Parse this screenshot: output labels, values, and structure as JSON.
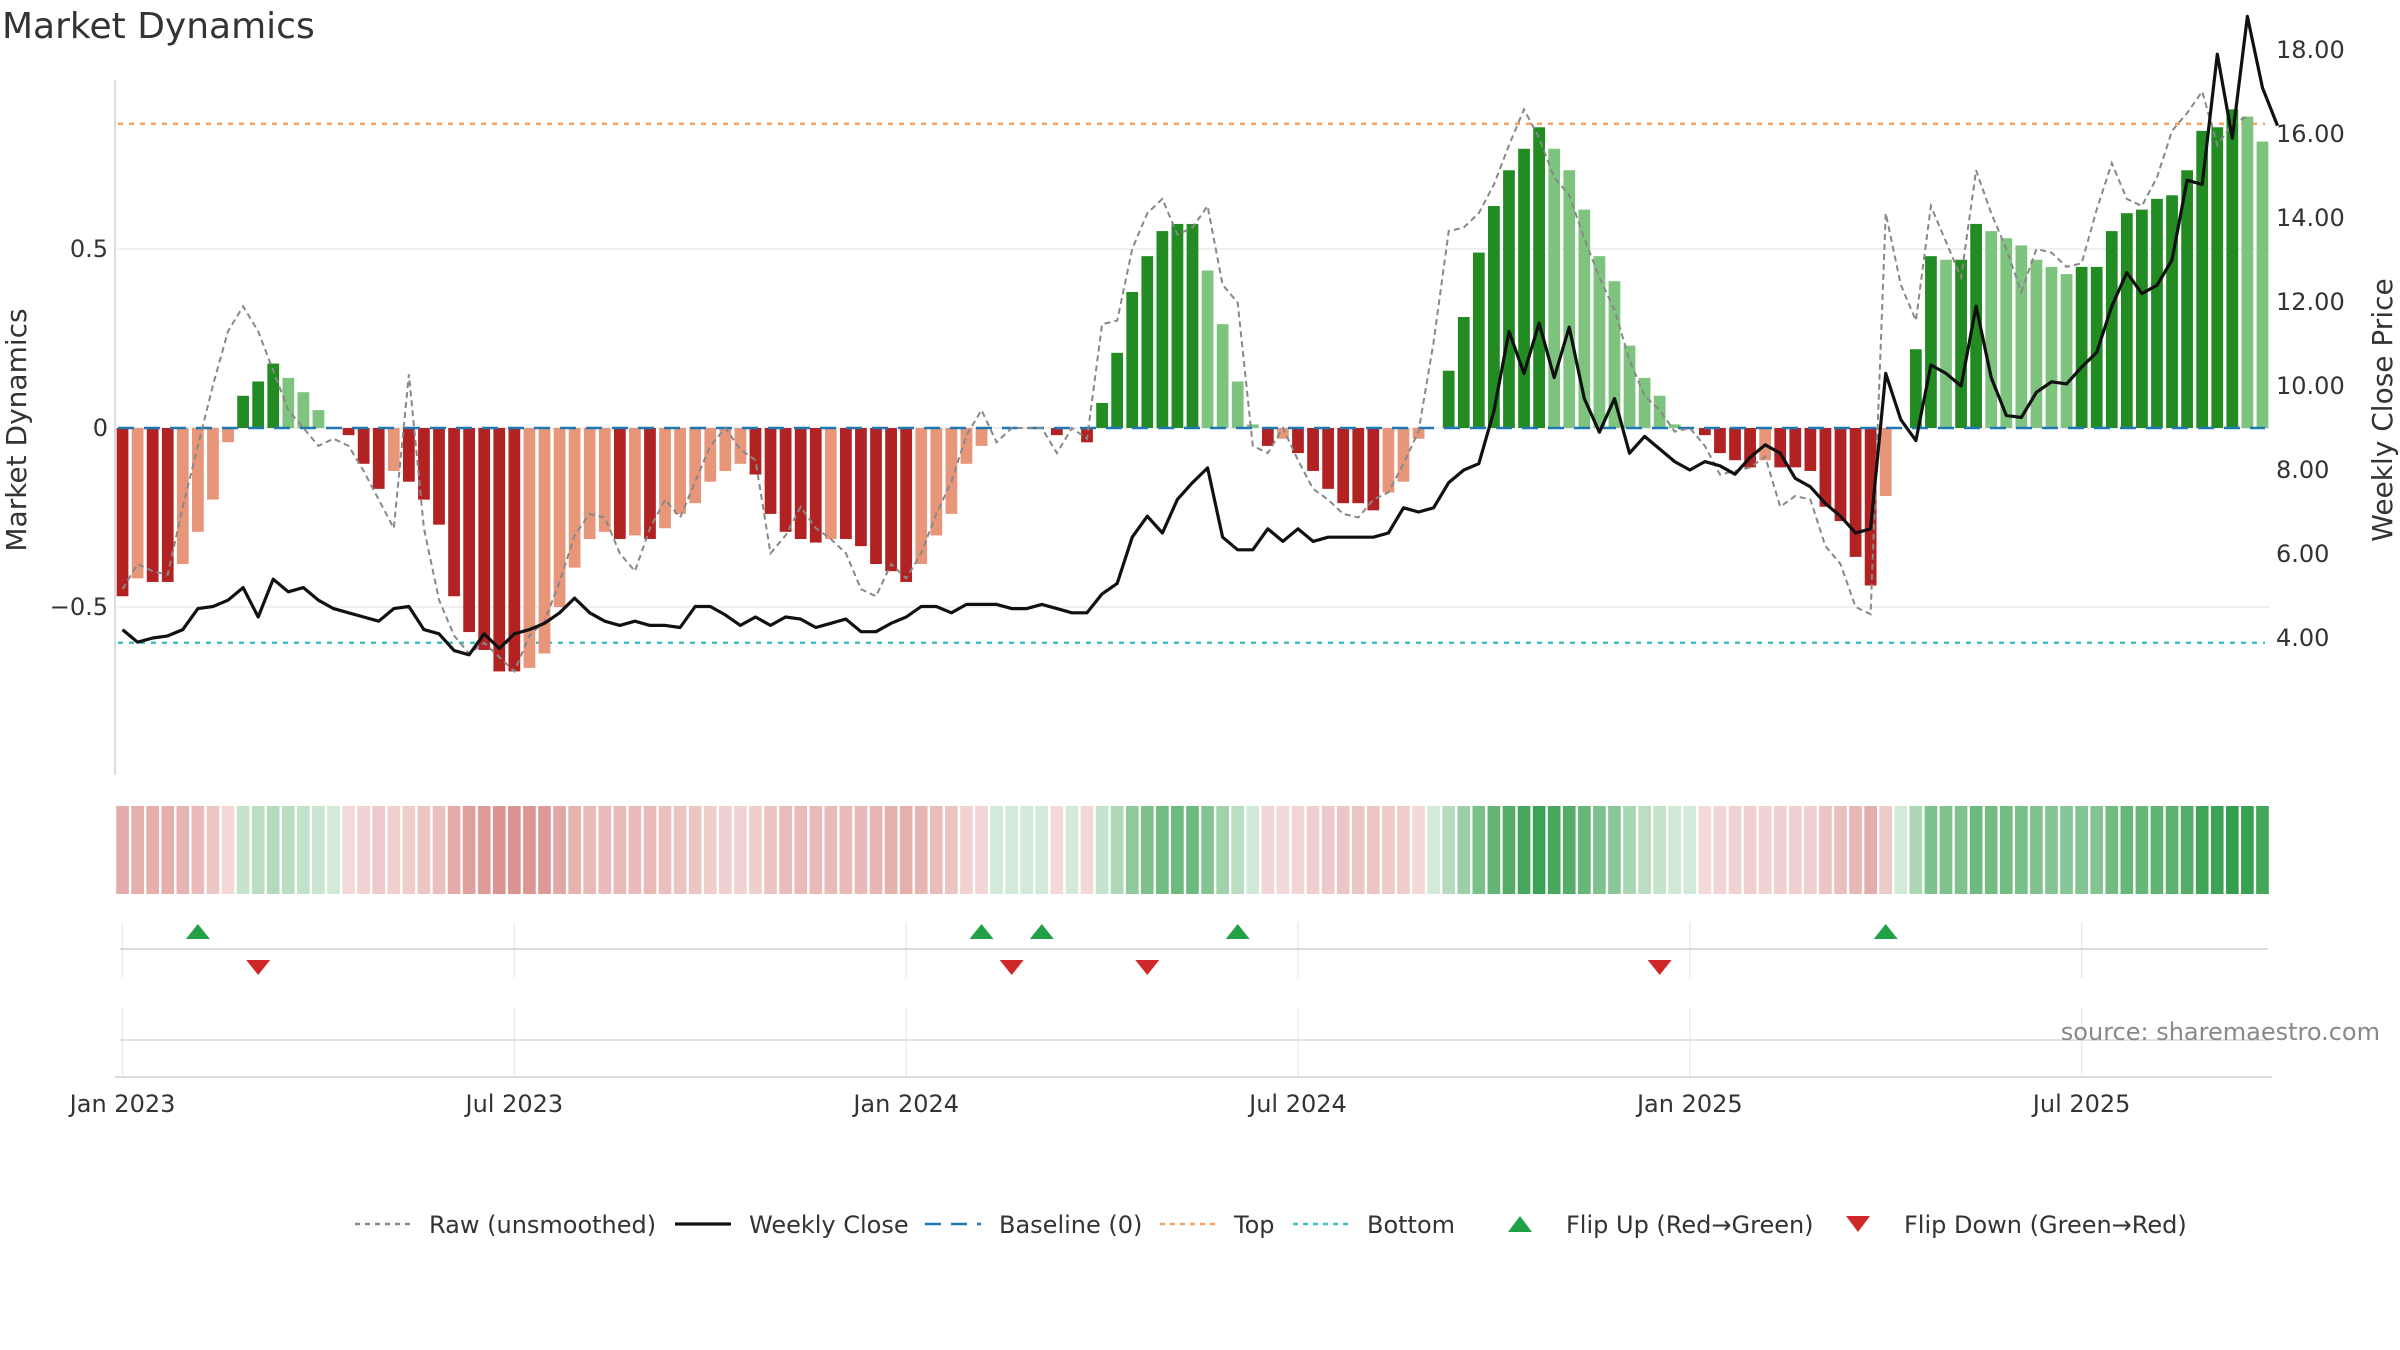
{
  "chart_data": {
    "type": "bar",
    "title": "Market Dynamics",
    "ylabel_left": "Market Dynamics",
    "ylabel_right": "Weekly Close Price",
    "ylim_left": [
      -0.97,
      0.97
    ],
    "ylim_right": [
      3,
      19.5
    ],
    "yticks_left": [
      {
        "v": 0.5,
        "label": "0.5"
      },
      {
        "v": 0,
        "label": "0"
      },
      {
        "v": -0.5,
        "label": "−0.5"
      }
    ],
    "yticks_right": [
      {
        "v": 18,
        "label": "18.00"
      },
      {
        "v": 16,
        "label": "16.00"
      },
      {
        "v": 14,
        "label": "14.00"
      },
      {
        "v": 12,
        "label": "12.00"
      },
      {
        "v": 10,
        "label": "10.00"
      },
      {
        "v": 8,
        "label": "8.00"
      },
      {
        "v": 6,
        "label": "6.00"
      },
      {
        "v": 4,
        "label": "4.00"
      }
    ],
    "xticks": [
      {
        "week": 0,
        "label": "Jan 2023"
      },
      {
        "week": 26,
        "label": "Jul 2023"
      },
      {
        "week": 52,
        "label": "Jan 2024"
      },
      {
        "week": 78,
        "label": "Jul 2024"
      },
      {
        "week": 104,
        "label": "Jan 2025"
      },
      {
        "week": 130,
        "label": "Jul 2025"
      }
    ],
    "x_start": "2022-12-26",
    "x_step_days": 7,
    "top": 0.85,
    "bottom": -0.6,
    "baseline": 0,
    "dynamics": [
      -0.47,
      -0.42,
      -0.43,
      -0.43,
      -0.38,
      -0.29,
      -0.2,
      -0.04,
      0.09,
      0.13,
      0.18,
      0.14,
      0.1,
      0.05,
      0,
      -0.02,
      -0.1,
      -0.17,
      -0.12,
      -0.15,
      -0.2,
      -0.27,
      -0.47,
      -0.57,
      -0.62,
      -0.68,
      -0.68,
      -0.67,
      -0.63,
      -0.5,
      -0.39,
      -0.31,
      -0.29,
      -0.31,
      -0.3,
      -0.31,
      -0.28,
      -0.24,
      -0.21,
      -0.15,
      -0.12,
      -0.1,
      -0.13,
      -0.24,
      -0.29,
      -0.31,
      -0.32,
      -0.31,
      -0.31,
      -0.33,
      -0.38,
      -0.4,
      -0.43,
      -0.38,
      -0.3,
      -0.24,
      -0.1,
      -0.05,
      0,
      0,
      0,
      0,
      -0.02,
      0,
      -0.04,
      0.07,
      0.21,
      0.38,
      0.48,
      0.55,
      0.57,
      0.57,
      0.44,
      0.29,
      0.13,
      0.01,
      -0.05,
      -0.03,
      -0.07,
      -0.12,
      -0.17,
      -0.21,
      -0.21,
      -0.23,
      -0.18,
      -0.15,
      -0.03,
      0,
      0.16,
      0.31,
      0.49,
      0.62,
      0.72,
      0.78,
      0.84,
      0.78,
      0.72,
      0.61,
      0.48,
      0.41,
      0.23,
      0.14,
      0.09,
      0.01,
      0,
      -0.02,
      -0.07,
      -0.09,
      -0.11,
      -0.09,
      -0.11,
      -0.11,
      -0.12,
      -0.22,
      -0.26,
      -0.36,
      -0.44,
      -0.19,
      0,
      0.22,
      0.48,
      0.47,
      0.47,
      0.57,
      0.55,
      0.53,
      0.51,
      0.47,
      0.45,
      0.43,
      0.45,
      0.45,
      0.55,
      0.6,
      0.61,
      0.64,
      0.65,
      0.72,
      0.83,
      0.84,
      0.89,
      0.87,
      0.8
    ],
    "raw": [
      -0.45,
      -0.38,
      -0.4,
      -0.41,
      -0.22,
      -0.05,
      0.12,
      0.27,
      0.34,
      0.27,
      0.16,
      0.05,
      0,
      -0.05,
      -0.03,
      -0.05,
      -0.12,
      -0.2,
      -0.28,
      0.15,
      -0.28,
      -0.48,
      -0.58,
      -0.63,
      -0.6,
      -0.64,
      -0.68,
      -0.58,
      -0.54,
      -0.43,
      -0.3,
      -0.24,
      -0.25,
      -0.35,
      -0.4,
      -0.28,
      -0.2,
      -0.25,
      -0.15,
      -0.05,
      0,
      -0.06,
      -0.09,
      -0.35,
      -0.3,
      -0.22,
      -0.28,
      -0.31,
      -0.35,
      -0.45,
      -0.47,
      -0.38,
      -0.42,
      -0.35,
      -0.24,
      -0.15,
      -0.02,
      0.05,
      -0.04,
      0,
      0,
      0,
      -0.07,
      0,
      -0.03,
      0.29,
      0.3,
      0.5,
      0.6,
      0.64,
      0.54,
      0.56,
      0.62,
      0.4,
      0.35,
      -0.05,
      -0.07,
      0,
      -0.09,
      -0.17,
      -0.2,
      -0.24,
      -0.25,
      -0.2,
      -0.18,
      -0.1,
      -0.01,
      0.24,
      0.55,
      0.56,
      0.6,
      0.68,
      0.79,
      0.89,
      0.81,
      0.7,
      0.65,
      0.53,
      0.42,
      0.33,
      0.19,
      0.09,
      0.05,
      -0.01,
      0,
      -0.05,
      -0.13,
      -0.12,
      -0.11,
      -0.08,
      -0.22,
      -0.19,
      -0.2,
      -0.33,
      -0.38,
      -0.5,
      -0.52,
      0.6,
      0.4,
      0.3,
      0.62,
      0.52,
      0.42,
      0.72,
      0.6,
      0.5,
      0.38,
      0.5,
      0.49,
      0.45,
      0.46,
      0.61,
      0.74,
      0.64,
      0.62,
      0.7,
      0.83,
      0.88,
      0.94,
      0.79,
      0.85,
      0.87
    ],
    "close": [
      4.2,
      3.9,
      4.0,
      4.05,
      4.2,
      4.7,
      4.75,
      4.9,
      5.2,
      4.5,
      5.4,
      5.1,
      5.2,
      4.9,
      4.7,
      4.6,
      4.5,
      4.4,
      4.7,
      4.75,
      4.2,
      4.1,
      3.7,
      3.6,
      4.1,
      3.75,
      4.1,
      4.2,
      4.35,
      4.6,
      4.95,
      4.6,
      4.4,
      4.3,
      4.4,
      4.3,
      4.3,
      4.25,
      4.75,
      4.75,
      4.55,
      4.3,
      4.5,
      4.3,
      4.5,
      4.45,
      4.25,
      4.35,
      4.45,
      4.15,
      4.15,
      4.35,
      4.5,
      4.75,
      4.75,
      4.6,
      4.8,
      4.8,
      4.8,
      4.7,
      4.7,
      4.8,
      4.7,
      4.6,
      4.6,
      5.05,
      5.3,
      6.4,
      6.9,
      6.5,
      7.3,
      7.7,
      8.05,
      6.4,
      6.1,
      6.1,
      6.6,
      6.3,
      6.6,
      6.3,
      6.4,
      6.4,
      6.4,
      6.4,
      6.5,
      7.1,
      7.0,
      7.1,
      7.7,
      8.0,
      8.15,
      9.4,
      11.3,
      10.3,
      11.5,
      10.2,
      11.4,
      9.7,
      8.9,
      9.7,
      8.4,
      8.8,
      8.5,
      8.2,
      8.0,
      8.2,
      8.1,
      7.9,
      8.3,
      8.6,
      8.4,
      7.8,
      7.6,
      7.2,
      6.9,
      6.5,
      6.6,
      10.3,
      9.2,
      8.7,
      10.5,
      10.3,
      10.0,
      11.9,
      10.2,
      9.3,
      9.25,
      9.85,
      10.1,
      10.05,
      10.45,
      10.8,
      11.9,
      12.7,
      12.2,
      12.4,
      13.0,
      14.9,
      14.8,
      17.9,
      15.9,
      18.8,
      17.1,
      16.2
    ],
    "flip_up_weeks": [
      5,
      57,
      61,
      74,
      117
    ],
    "flip_down_weeks": [
      9,
      59,
      68,
      102
    ],
    "colors": {
      "rising_red": "#b22222",
      "falling_red": "#e8967a",
      "rising_green": "#228b22",
      "falling_green": "#7ec47e",
      "raw": "#888888",
      "close": "#111111",
      "baseline": "#1f77b4",
      "top": "#f4a460",
      "bottom": "#40c0c0",
      "flip_up": "#22a046",
      "flip_down": "#d02828"
    },
    "legend": [
      {
        "key": "raw",
        "label": "Raw (unsmoothed)"
      },
      {
        "key": "close",
        "label": "Weekly Close"
      },
      {
        "key": "baseline",
        "label": "Baseline (0)"
      },
      {
        "key": "top",
        "label": "Top"
      },
      {
        "key": "bottom",
        "label": "Bottom"
      },
      {
        "key": "flip_up",
        "label": "Flip Up (Red→Green)"
      },
      {
        "key": "flip_down",
        "label": "Flip Down (Green→Red)"
      }
    ],
    "legend_position": "bottom-center",
    "grid": true,
    "source": "source: sharemaestro.com"
  }
}
